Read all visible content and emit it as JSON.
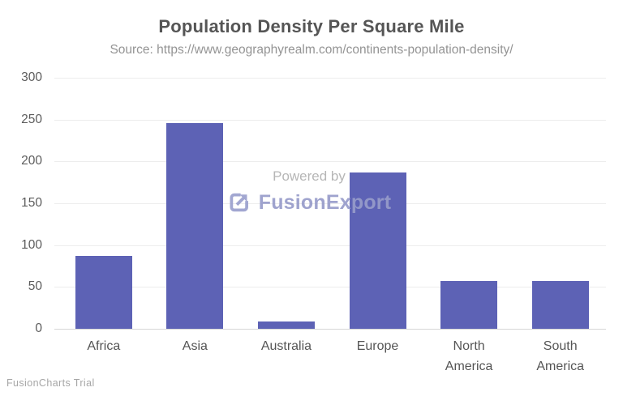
{
  "chart": {
    "title": "Population Density Per Square Mile",
    "subtitle": "Source: https://www.geographyrealm.com/continents-population-density/",
    "trial_label": "FusionCharts Trial",
    "watermark": {
      "powered_by": "Powered by",
      "brand": "FusionExport",
      "icon": "export-icon"
    },
    "colors": {
      "bar": "#5d62b5",
      "title": "#555555",
      "subtitle": "#949494",
      "y_tick_label": "#5c5c5c",
      "x_category_label": "#555555",
      "gridline": "#ededed",
      "axis_line": "#d6d6d6",
      "watermark_text": "#b6b6b6",
      "watermark_brand": "#979cca",
      "trial_text": "#a6a6a6",
      "background": "#ffffff"
    }
  },
  "chart_data": {
    "type": "bar",
    "title": "Population Density Per Square Mile",
    "subtitle": "Source: https://www.geographyrealm.com/continents-population-density/",
    "categories": [
      "Africa",
      "Asia",
      "Australia",
      "Europe",
      "North America",
      "South America"
    ],
    "values": [
      87,
      246,
      9,
      187,
      57,
      57
    ],
    "xlabel": "",
    "ylabel": "",
    "ylim": [
      0,
      300
    ],
    "yticks": [
      0,
      50,
      100,
      150,
      200,
      250,
      300
    ],
    "grid": true,
    "legend": false,
    "bar_color": "#5d62b5"
  }
}
